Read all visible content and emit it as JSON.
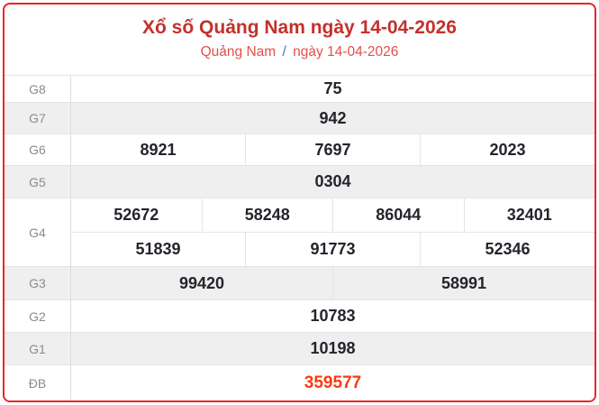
{
  "header": {
    "title": "Xổ số Quảng Nam ngày 14-04-2026",
    "breadcrumb": {
      "region": "Quảng Nam",
      "separator": "/",
      "date": "ngày 14-04-2026"
    }
  },
  "colors": {
    "card_border": "#e9242b",
    "title_text": "#c3312b",
    "subtitle_text": "#e25049",
    "breadcrumb_slash": "#3a78b5",
    "special_prize_text": "#fa3a10",
    "alt_row_background": "#efefef",
    "value_text": "#22252a",
    "label_text": "#8c8c8c"
  },
  "results": {
    "rows": [
      {
        "label": "G8",
        "alt": false,
        "special": false,
        "groups": [
          [
            "75"
          ]
        ]
      },
      {
        "label": "G7",
        "alt": true,
        "special": false,
        "groups": [
          [
            "942"
          ]
        ]
      },
      {
        "label": "G6",
        "alt": false,
        "special": false,
        "groups": [
          [
            "8921",
            "7697",
            "2023"
          ]
        ]
      },
      {
        "label": "G5",
        "alt": true,
        "special": false,
        "groups": [
          [
            "0304"
          ]
        ]
      },
      {
        "label": "G4",
        "alt": false,
        "special": false,
        "groups": [
          [
            "52672",
            "58248",
            "86044",
            "32401"
          ],
          [
            "51839",
            "91773",
            "52346"
          ]
        ]
      },
      {
        "label": "G3",
        "alt": true,
        "special": false,
        "groups": [
          [
            "99420",
            "58991"
          ]
        ]
      },
      {
        "label": "G2",
        "alt": false,
        "special": false,
        "groups": [
          [
            "10783"
          ]
        ]
      },
      {
        "label": "G1",
        "alt": true,
        "special": false,
        "groups": [
          [
            "10198"
          ]
        ]
      },
      {
        "label": "ĐB",
        "alt": false,
        "special": true,
        "groups": [
          [
            "359577"
          ]
        ]
      }
    ]
  }
}
